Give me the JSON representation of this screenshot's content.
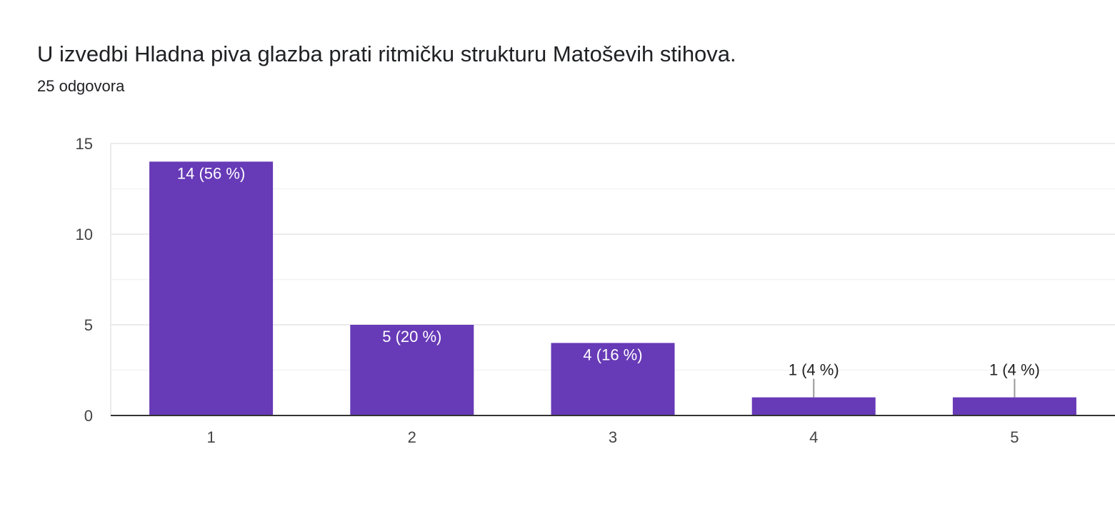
{
  "question": {
    "title": "U izvedbi Hladna piva glazba prati ritmičku strukturu Matoševih stihova.",
    "response_count": "25 odgovora"
  },
  "colors": {
    "bar": "#673ab7",
    "grid": "#ebebeb",
    "axis": "#333333",
    "label_inside": "#ffffff",
    "label_outside": "#222222",
    "leader_line": "#999999"
  },
  "chart_data": {
    "type": "bar",
    "categories": [
      "1",
      "2",
      "3",
      "4",
      "5"
    ],
    "values": [
      14,
      5,
      4,
      1,
      1
    ],
    "data_labels": [
      "14 (56 %)",
      "5 (20 %)",
      "4 (16 %)",
      "1 (4 %)",
      "1 (4 %)"
    ],
    "ylim": [
      0,
      15
    ],
    "y_ticks": [
      0,
      5,
      10,
      15
    ],
    "y_minor_ticks": [
      2.5,
      7.5,
      12.5
    ],
    "grid": true,
    "title": "",
    "xlabel": "",
    "ylabel": ""
  }
}
